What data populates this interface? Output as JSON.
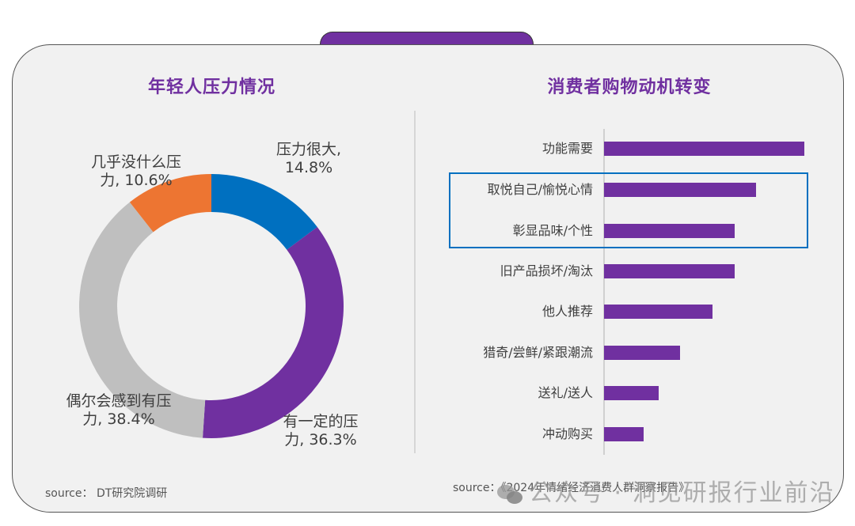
{
  "left_panel": {
    "title": "年轻人压力情况",
    "source": "source： DT研究院调研"
  },
  "right_panel": {
    "title": "消费者购物动机转变",
    "source": "source：《2024年情绪经济消费人群洞察报告》"
  },
  "watermark": "公众号 · 洞见研报行业前沿",
  "colors": {
    "accent_purple": "#7030a0",
    "blue": "#0070c0",
    "orange": "#ed7532",
    "gray": "#bfbfbf",
    "panel_bg": "#f1f1f1"
  },
  "chart_data": [
    {
      "type": "pie",
      "subtype": "donut",
      "title": "年轻人压力情况",
      "categories": [
        "压力很大",
        "有一定的压力",
        "偶尔会感到有压力",
        "几乎没什么压力"
      ],
      "values": [
        14.8,
        36.3,
        38.4,
        10.6
      ],
      "unit": "%",
      "colors": [
        "#0070c0",
        "#7030a0",
        "#bfbfbf",
        "#ed7532"
      ],
      "labels": [
        {
          "line1": "压力很大,",
          "line2": "14.8%"
        },
        {
          "line1": "有一定的压",
          "line2": "力, 36.3%"
        },
        {
          "line1": "偶尔会感到有压",
          "line2": "力, 38.4%"
        },
        {
          "line1": "几乎没什么压",
          "line2": "力, 10.6%"
        }
      ],
      "start_angle_deg": 0,
      "direction": "clockwise"
    },
    {
      "type": "bar",
      "orientation": "horizontal",
      "title": "消费者购物动机转变",
      "categories": [
        "功能需要",
        "取悦自己/愉悦心情",
        "彰显品味/个性",
        "旧产品损坏/淘汰",
        "他人推荐",
        "猎奇/尝鲜/紧跟潮流",
        "送礼/送人",
        "冲动购买"
      ],
      "values": [
        253,
        192,
        165,
        165,
        137,
        96,
        69,
        50
      ],
      "values_note": "relative bar lengths (no axis/value labels shown)",
      "highlighted": [
        "取悦自己/愉悦心情",
        "彰显品味/个性"
      ],
      "color": "#7030a0",
      "xlabel": "",
      "ylabel": "",
      "grid": false
    }
  ]
}
